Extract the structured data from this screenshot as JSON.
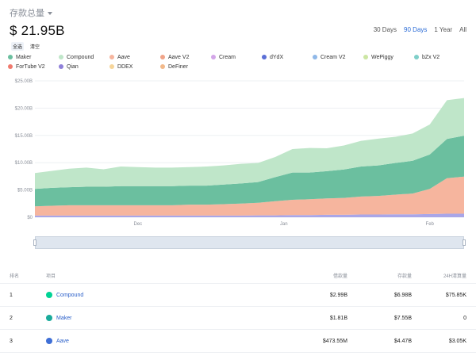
{
  "header": {
    "metric_label": "存款总量",
    "total_value": "$ 21.95B"
  },
  "ranges": [
    {
      "label": "30 Days",
      "active": false
    },
    {
      "label": "90 Days",
      "active": true
    },
    {
      "label": "1 Year",
      "active": false
    },
    {
      "label": "All",
      "active": false
    }
  ],
  "toggles": {
    "all": "全选",
    "clear": "清空"
  },
  "legend": [
    {
      "label": "Maker",
      "color": "#6bbf9f"
    },
    {
      "label": "Compound",
      "color": "#bfe6c9"
    },
    {
      "label": "Aave",
      "color": "#f6b59e"
    },
    {
      "label": "Aave V2",
      "color": "#f0a489"
    },
    {
      "label": "Cream",
      "color": "#d3a6e8"
    },
    {
      "label": "dYdX",
      "color": "#5b6fd6"
    },
    {
      "label": "Cream V2",
      "color": "#8fb8e8"
    },
    {
      "label": "WePiggy",
      "color": "#cce6a3"
    },
    {
      "label": "bZx V2",
      "color": "#7fcfc9"
    },
    {
      "label": "ForTube V2",
      "color": "#f07a6e"
    },
    {
      "label": "Qian",
      "color": "#8f80d9"
    },
    {
      "label": "DDEX",
      "color": "#f6d59a"
    },
    {
      "label": "DeFiner",
      "color": "#f2b98a"
    }
  ],
  "chart_data": {
    "type": "area",
    "x_tick_labels": [
      "Dec",
      "Jan",
      "Feb"
    ],
    "y_tick_labels": [
      "$0",
      "$5.00B",
      "$10.00B",
      "$15.00B",
      "$20.00B",
      "$25.00B"
    ],
    "ylim": [
      0,
      25
    ],
    "y_unit": "B USD",
    "grid": true,
    "stacked": true,
    "n_points": 26,
    "series": [
      {
        "name": "DeFiner",
        "color": "#a9a6e8",
        "values": [
          0.3,
          0.3,
          0.3,
          0.3,
          0.3,
          0.3,
          0.3,
          0.3,
          0.3,
          0.3,
          0.3,
          0.3,
          0.3,
          0.35,
          0.35,
          0.4,
          0.4,
          0.45,
          0.45,
          0.5,
          0.5,
          0.55,
          0.55,
          0.6,
          0.65,
          0.65
        ]
      },
      {
        "name": "Aave",
        "color": "#f6b59e",
        "values": [
          1.7,
          1.8,
          1.9,
          1.9,
          1.9,
          1.9,
          1.9,
          1.9,
          1.9,
          2.0,
          2.0,
          2.1,
          2.2,
          2.3,
          2.6,
          2.8,
          2.9,
          3.0,
          3.1,
          3.3,
          3.4,
          3.6,
          3.8,
          4.6,
          6.5,
          6.8
        ]
      },
      {
        "name": "Maker",
        "color": "#6bbf9f",
        "values": [
          3.2,
          3.3,
          3.3,
          3.4,
          3.4,
          3.5,
          3.5,
          3.5,
          3.5,
          3.5,
          3.5,
          3.6,
          3.7,
          3.8,
          4.4,
          5.0,
          4.9,
          5.0,
          5.2,
          5.5,
          5.6,
          5.8,
          6.0,
          6.3,
          7.2,
          7.5
        ]
      },
      {
        "name": "Compound",
        "color": "#bfe6c9",
        "values": [
          2.9,
          3.1,
          3.4,
          3.5,
          3.2,
          3.6,
          3.5,
          3.4,
          3.4,
          3.4,
          3.5,
          3.5,
          3.6,
          3.5,
          3.7,
          4.3,
          4.5,
          4.2,
          4.4,
          4.7,
          4.9,
          4.8,
          5.0,
          5.5,
          7.1,
          6.9
        ]
      }
    ]
  },
  "table": {
    "headers": [
      "排名",
      "项目",
      "借款量",
      "存款量",
      "24H清算量"
    ],
    "rows": [
      {
        "rank": "1",
        "name": "Compound",
        "icon": "compound-icon",
        "icon_color": "#00d395",
        "borrow": "$2.99B",
        "deposit": "$6.98B",
        "liquidation": "$75.85K"
      },
      {
        "rank": "2",
        "name": "Maker",
        "icon": "maker-icon",
        "icon_color": "#1aab9b",
        "borrow": "$1.81B",
        "deposit": "$7.55B",
        "liquidation": "0"
      },
      {
        "rank": "3",
        "name": "Aave",
        "icon": "aave-icon",
        "icon_color": "#3f6fd6",
        "borrow": "$473.55M",
        "deposit": "$4.47B",
        "liquidation": "$3.05K"
      }
    ]
  }
}
